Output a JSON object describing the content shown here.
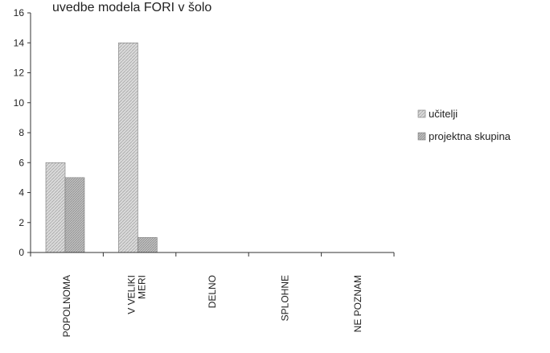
{
  "chart_data": {
    "type": "bar",
    "title": "uvedbe modela FORI v šolo",
    "categories": [
      "POPOLNOMA",
      "V VELIKI MERI",
      "DELNO",
      "SPLOHNE",
      "NE POZNAM"
    ],
    "series": [
      {
        "name": "učitelji",
        "values": [
          6,
          14,
          0,
          0,
          0
        ]
      },
      {
        "name": "projektna skupina",
        "values": [
          5,
          1,
          0,
          0,
          0
        ]
      }
    ],
    "yticks": [
      0,
      2,
      4,
      6,
      8,
      10,
      12,
      14,
      16
    ],
    "ylim": [
      0,
      16
    ],
    "grid": false,
    "legend_position": "right",
    "colors": {
      "series": [
        "#d2d2d2",
        "#b4b4b4"
      ],
      "axis": "#333333"
    }
  }
}
